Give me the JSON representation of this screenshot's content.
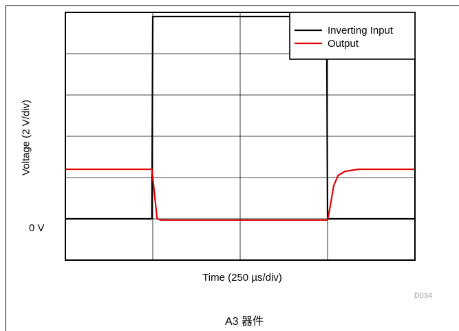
{
  "figure_id": "D034",
  "caption": "A3 器件",
  "chart_data": {
    "type": "line",
    "title": "",
    "xlabel": "Time (250 µs/div)",
    "ylabel": "Voltage (2 V/div)",
    "y_tick_label_zero": "0 V",
    "divisions": {
      "x": 4,
      "y": 6
    },
    "xlim": [
      0,
      4
    ],
    "ylim": [
      -1,
      5
    ],
    "grid": true,
    "legend": {
      "placement": "top-right"
    },
    "series": [
      {
        "name": "Inverting Input",
        "color": "#000000",
        "x": [
          0,
          0.99,
          1.0,
          2.99,
          3.0,
          4.0
        ],
        "y": [
          0,
          0,
          4.9,
          4.9,
          0,
          0
        ]
      },
      {
        "name": "Output",
        "color": "#e00000",
        "x": [
          0,
          0.99,
          1.02,
          1.05,
          1.1,
          3.0,
          3.03,
          3.07,
          3.12,
          3.2,
          3.35,
          4.0
        ],
        "y": [
          1.2,
          1.2,
          0.6,
          0.0,
          -0.03,
          -0.03,
          0.3,
          0.8,
          1.05,
          1.15,
          1.2,
          1.2
        ]
      }
    ]
  }
}
